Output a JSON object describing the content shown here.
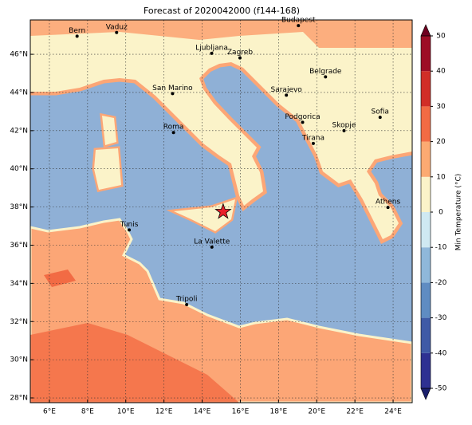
{
  "chart_data": {
    "type": "map",
    "title": "Forecast of 2020042000 (f144-168)",
    "xlim": [
      5,
      25
    ],
    "ylim": [
      27.75,
      47.8
    ],
    "xticks": [
      {
        "value": 6,
        "label": "6°E"
      },
      {
        "value": 8,
        "label": "8°E"
      },
      {
        "value": 10,
        "label": "10°E"
      },
      {
        "value": 12,
        "label": "12°E"
      },
      {
        "value": 14,
        "label": "14°E"
      },
      {
        "value": 16,
        "label": "16°E"
      },
      {
        "value": 18,
        "label": "18°E"
      },
      {
        "value": 20,
        "label": "20°E"
      },
      {
        "value": 22,
        "label": "22°E"
      },
      {
        "value": 24,
        "label": "24°E"
      }
    ],
    "yticks": [
      {
        "value": 28,
        "label": "28°N"
      },
      {
        "value": 30,
        "label": "30°N"
      },
      {
        "value": 32,
        "label": "32°N"
      },
      {
        "value": 34,
        "label": "34°N"
      },
      {
        "value": 36,
        "label": "36°N"
      },
      {
        "value": 38,
        "label": "38°N"
      },
      {
        "value": 40,
        "label": "40°N"
      },
      {
        "value": 42,
        "label": "42°N"
      },
      {
        "value": 44,
        "label": "44°N"
      },
      {
        "value": 46,
        "label": "46°N"
      }
    ],
    "grid": true,
    "cities": [
      {
        "name": "Bern",
        "lon": 7.45,
        "lat": 46.95
      },
      {
        "name": "Vaduz",
        "lon": 9.52,
        "lat": 47.14
      },
      {
        "name": "Budapest",
        "lon": 19.04,
        "lat": 47.5
      },
      {
        "name": "Ljubljana",
        "lon": 14.5,
        "lat": 46.05
      },
      {
        "name": "Zagreb",
        "lon": 15.98,
        "lat": 45.81
      },
      {
        "name": "Belgrade",
        "lon": 20.46,
        "lat": 44.82
      },
      {
        "name": "San Marino",
        "lon": 12.45,
        "lat": 43.94
      },
      {
        "name": "Sarajevo",
        "lon": 18.41,
        "lat": 43.86
      },
      {
        "name": "Roma",
        "lon": 12.5,
        "lat": 41.9
      },
      {
        "name": "Podgorica",
        "lon": 19.26,
        "lat": 42.44
      },
      {
        "name": "Sofia",
        "lon": 23.32,
        "lat": 42.7
      },
      {
        "name": "Skopje",
        "lon": 21.43,
        "lat": 42.0
      },
      {
        "name": "Tirana",
        "lon": 19.82,
        "lat": 41.33
      },
      {
        "name": "Athens",
        "lon": 23.73,
        "lat": 37.98
      },
      {
        "name": "Tunis",
        "lon": 10.18,
        "lat": 36.8
      },
      {
        "name": "La Valette",
        "lon": 14.51,
        "lat": 35.9
      },
      {
        "name": "Tripoli",
        "lon": 13.19,
        "lat": 32.89
      }
    ],
    "star": {
      "lon": 15.1,
      "lat": 37.75,
      "color": "#e8202a"
    },
    "colorbar": {
      "label": "Min Temperature (°C)",
      "lim": [
        -50,
        50
      ],
      "ticks": [
        -50,
        -40,
        -30,
        -20,
        -10,
        0,
        10,
        20,
        30,
        40,
        50
      ],
      "colors": [
        "#2e3192",
        "#3f5aa6",
        "#5f8cc2",
        "#8fb8da",
        "#cfe9f2",
        "#fbf3c9",
        "#fcaa72",
        "#f26b44",
        "#d12e27",
        "#9d0d26"
      ],
      "extend_colors": [
        "#1a1f6b",
        "#6e0020"
      ]
    }
  }
}
